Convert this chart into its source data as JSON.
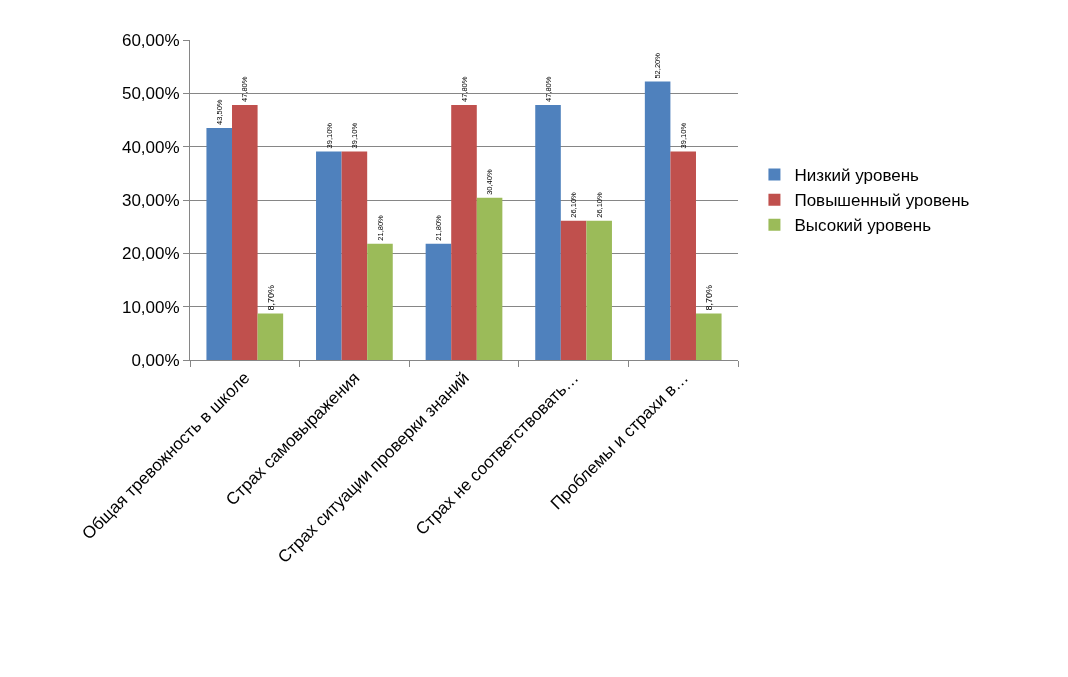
{
  "chart_data": {
    "type": "bar",
    "categories": [
      "Общая тревожность в школе",
      "Страх самовыражения",
      "Страх ситуации проверки знаний",
      "Страх не соответствовать…",
      "Проблемы и страхи в…"
    ],
    "series": [
      {
        "name": "Низкий уровень",
        "color": "#4f81bd",
        "values": [
          43.5,
          39.1,
          21.8,
          47.8,
          52.2
        ],
        "value_labels": [
          "43,50%",
          "39,10%",
          "21,80%",
          "47,80%",
          "52,20%"
        ]
      },
      {
        "name": "Повышенный уровень",
        "color": "#c0504d",
        "values": [
          47.8,
          39.1,
          47.8,
          26.1,
          39.1
        ],
        "value_labels": [
          "47,80%",
          "39,10%",
          "47,80%",
          "26,10%",
          "39,10%"
        ]
      },
      {
        "name": "Высокий уровень",
        "color": "#9bbb59",
        "values": [
          8.7,
          21.8,
          30.4,
          26.1,
          8.7
        ],
        "value_labels": [
          "8,70%",
          "21,80%",
          "30,40%",
          "26,10%",
          "8,70%"
        ]
      }
    ],
    "ylim": [
      0,
      60
    ],
    "yticks": [
      {
        "value": 0,
        "label": "0,00%"
      },
      {
        "value": 10,
        "label": "10,00%"
      },
      {
        "value": 20,
        "label": "20,00%"
      },
      {
        "value": 30,
        "label": "30,00%"
      },
      {
        "value": 40,
        "label": "40,00%"
      },
      {
        "value": 50,
        "label": "50,00%"
      },
      {
        "value": 60,
        "label": "60,00%"
      }
    ],
    "grid": "y",
    "legend": "right"
  }
}
